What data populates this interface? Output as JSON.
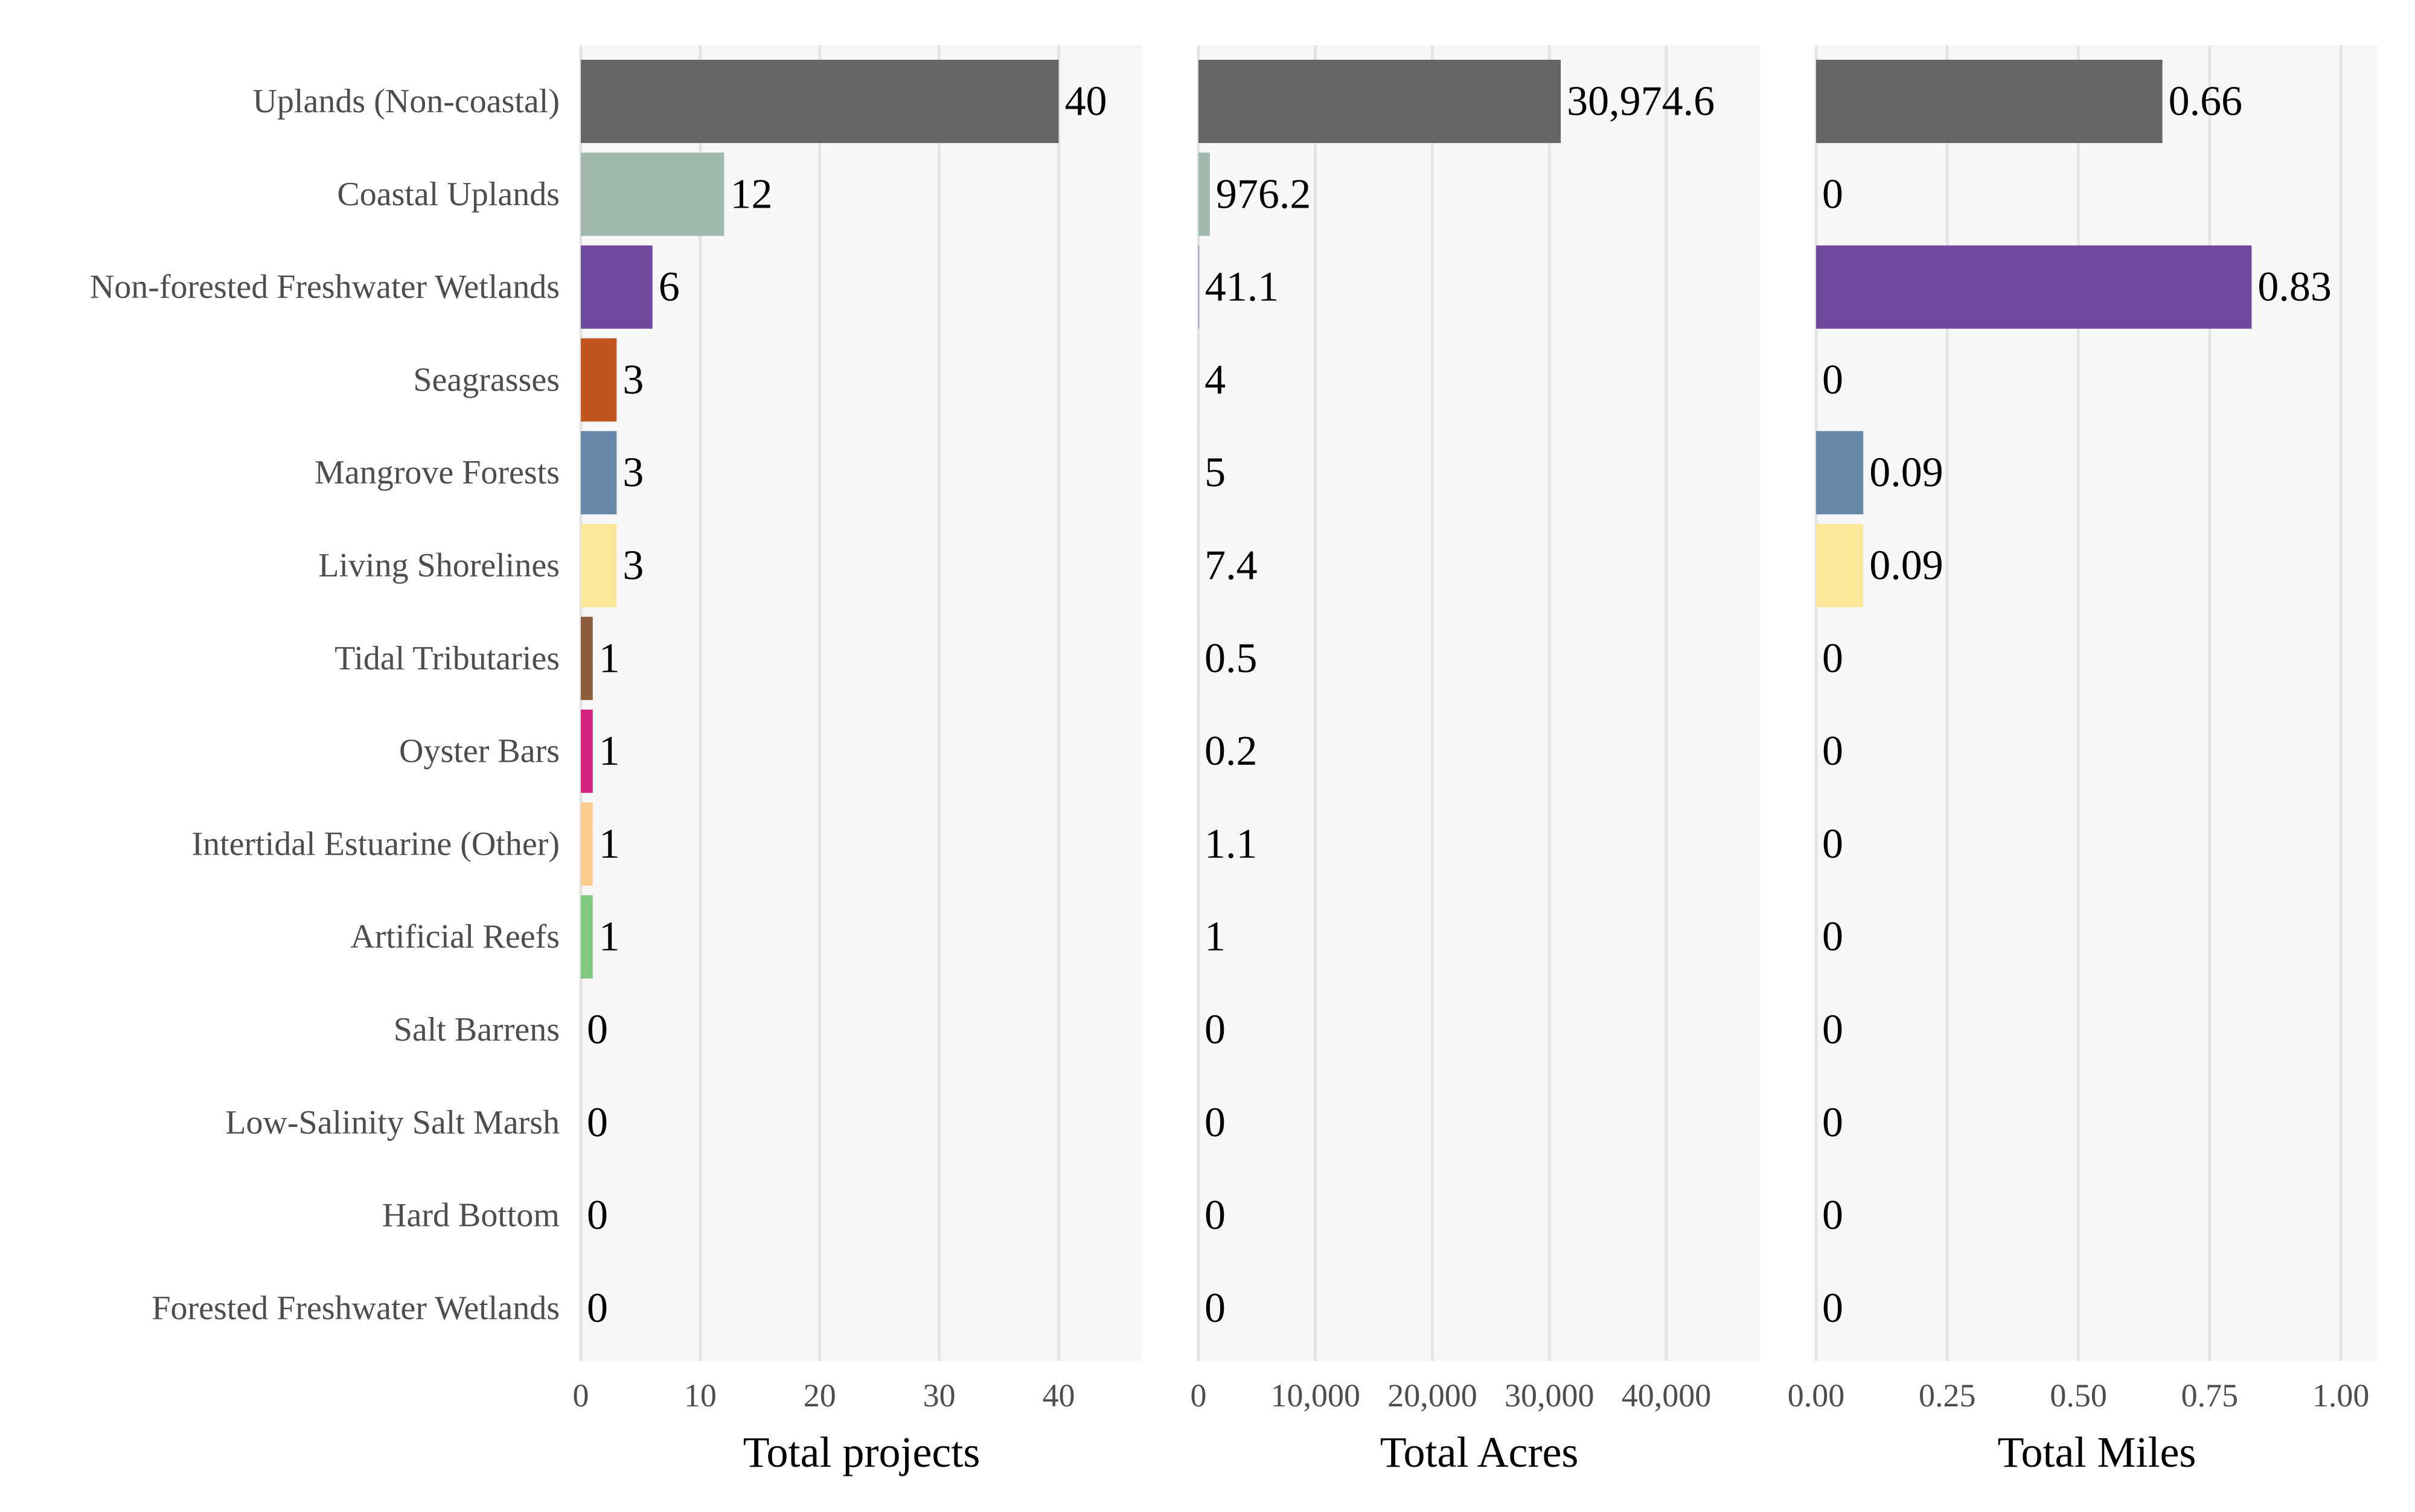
{
  "chart_data": {
    "type": "bar",
    "orientation": "horizontal",
    "grid": true,
    "categories": [
      "Uplands (Non-coastal)",
      "Coastal Uplands",
      "Non-forested Freshwater Wetlands",
      "Seagrasses",
      "Mangrove Forests",
      "Living Shorelines",
      "Tidal Tributaries",
      "Oyster Bars",
      "Intertidal Estuarine (Other)",
      "Artificial Reefs",
      "Salt Barrens",
      "Low-Salinity Salt Marsh",
      "Hard Bottom",
      "Forested Freshwater Wetlands"
    ],
    "colors": [
      "#666666",
      "#9fbaab",
      "#6f4a9f",
      "#c2551f",
      "#6689aa",
      "#fbe79a",
      "#8c5d3b",
      "#d4207f",
      "#fdcc90",
      "#7fc97f",
      "#999999",
      "#999999",
      "#999999",
      "#999999"
    ],
    "panels": [
      {
        "xlabel": "Total projects",
        "xlim": [
          0,
          47
        ],
        "ticks": [
          0,
          10,
          20,
          30,
          40
        ],
        "tick_labels": [
          "0",
          "10",
          "20",
          "30",
          "40"
        ],
        "values": [
          40,
          12,
          6,
          3,
          3,
          3,
          1,
          1,
          1,
          1,
          0,
          0,
          0,
          0
        ],
        "labels": [
          "40",
          "12",
          "6",
          "3",
          "3",
          "3",
          "1",
          "1",
          "1",
          "1",
          "0",
          "0",
          "0",
          "0"
        ]
      },
      {
        "xlabel": "Total Acres",
        "xlim": [
          0,
          48000
        ],
        "ticks": [
          0,
          10000,
          20000,
          30000,
          40000
        ],
        "tick_labels": [
          "0",
          "10,000",
          "20,000",
          "30,000",
          "40,000"
        ],
        "values": [
          30974.6,
          976.2,
          41.1,
          4,
          5,
          7.4,
          0.5,
          0.2,
          1.1,
          1,
          0,
          0,
          0,
          0
        ],
        "labels": [
          "30,974.6",
          "976.2",
          "41.1",
          "4",
          "5",
          "7.4",
          "0.5",
          "0.2",
          "1.1",
          "1",
          "0",
          "0",
          "0",
          "0"
        ]
      },
      {
        "xlabel": "Total Miles",
        "xlim": [
          0,
          1.07
        ],
        "ticks": [
          0,
          0.25,
          0.5,
          0.75,
          1.0
        ],
        "tick_labels": [
          "0.00",
          "0.25",
          "0.50",
          "0.75",
          "1.00"
        ],
        "values": [
          0.66,
          0,
          0.83,
          0,
          0.09,
          0.09,
          0,
          0,
          0,
          0,
          0,
          0,
          0,
          0
        ],
        "labels": [
          "0.66",
          "0",
          "0.83",
          "0",
          "0.09",
          "0.09",
          "0",
          "0",
          "0",
          "0",
          "0",
          "0",
          "0",
          "0"
        ]
      }
    ]
  }
}
